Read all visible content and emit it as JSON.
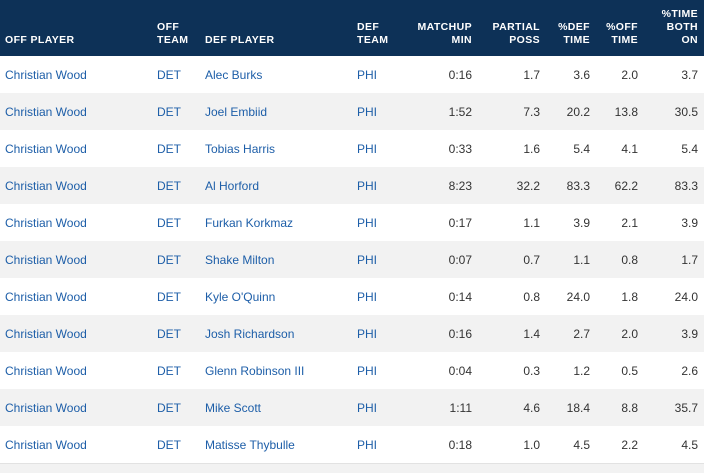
{
  "headers": {
    "off_player": "OFF PLAYER",
    "off_team": "OFF TEAM",
    "def_player": "DEF PLAYER",
    "def_team": "DEF TEAM",
    "matchup_min": "MATCHUP MIN",
    "partial_poss": "PARTIAL POSS",
    "pct_def_time": "%DEF TIME",
    "pct_off_time": "%OFF TIME",
    "pct_time_both_on": "%TIME BOTH ON"
  },
  "rows": [
    {
      "off_player": "Christian Wood",
      "off_team": "DET",
      "def_player": "Alec Burks",
      "def_team": "PHI",
      "matchup_min": "0:16",
      "partial_poss": "1.7",
      "pct_def_time": "3.6",
      "pct_off_time": "2.0",
      "pct_time_both_on": "3.7"
    },
    {
      "off_player": "Christian Wood",
      "off_team": "DET",
      "def_player": "Joel Embiid",
      "def_team": "PHI",
      "matchup_min": "1:52",
      "partial_poss": "7.3",
      "pct_def_time": "20.2",
      "pct_off_time": "13.8",
      "pct_time_both_on": "30.5"
    },
    {
      "off_player": "Christian Wood",
      "off_team": "DET",
      "def_player": "Tobias Harris",
      "def_team": "PHI",
      "matchup_min": "0:33",
      "partial_poss": "1.6",
      "pct_def_time": "5.4",
      "pct_off_time": "4.1",
      "pct_time_both_on": "5.4"
    },
    {
      "off_player": "Christian Wood",
      "off_team": "DET",
      "def_player": "Al Horford",
      "def_team": "PHI",
      "matchup_min": "8:23",
      "partial_poss": "32.2",
      "pct_def_time": "83.3",
      "pct_off_time": "62.2",
      "pct_time_both_on": "83.3"
    },
    {
      "off_player": "Christian Wood",
      "off_team": "DET",
      "def_player": "Furkan Korkmaz",
      "def_team": "PHI",
      "matchup_min": "0:17",
      "partial_poss": "1.1",
      "pct_def_time": "3.9",
      "pct_off_time": "2.1",
      "pct_time_both_on": "3.9"
    },
    {
      "off_player": "Christian Wood",
      "off_team": "DET",
      "def_player": "Shake Milton",
      "def_team": "PHI",
      "matchup_min": "0:07",
      "partial_poss": "0.7",
      "pct_def_time": "1.1",
      "pct_off_time": "0.8",
      "pct_time_both_on": "1.7"
    },
    {
      "off_player": "Christian Wood",
      "off_team": "DET",
      "def_player": "Kyle O'Quinn",
      "def_team": "PHI",
      "matchup_min": "0:14",
      "partial_poss": "0.8",
      "pct_def_time": "24.0",
      "pct_off_time": "1.8",
      "pct_time_both_on": "24.0"
    },
    {
      "off_player": "Christian Wood",
      "off_team": "DET",
      "def_player": "Josh Richardson",
      "def_team": "PHI",
      "matchup_min": "0:16",
      "partial_poss": "1.4",
      "pct_def_time": "2.7",
      "pct_off_time": "2.0",
      "pct_time_both_on": "3.9"
    },
    {
      "off_player": "Christian Wood",
      "off_team": "DET",
      "def_player": "Glenn Robinson III",
      "def_team": "PHI",
      "matchup_min": "0:04",
      "partial_poss": "0.3",
      "pct_def_time": "1.2",
      "pct_off_time": "0.5",
      "pct_time_both_on": "2.6"
    },
    {
      "off_player": "Christian Wood",
      "off_team": "DET",
      "def_player": "Mike Scott",
      "def_team": "PHI",
      "matchup_min": "1:11",
      "partial_poss": "4.6",
      "pct_def_time": "18.4",
      "pct_off_time": "8.8",
      "pct_time_both_on": "35.7"
    },
    {
      "off_player": "Christian Wood",
      "off_team": "DET",
      "def_player": "Matisse Thybulle",
      "def_team": "PHI",
      "matchup_min": "0:18",
      "partial_poss": "1.0",
      "pct_def_time": "4.5",
      "pct_off_time": "2.2",
      "pct_time_both_on": "4.5"
    }
  ],
  "colors": {
    "header_bg": "#0d3157",
    "header_text": "#ffffff",
    "link": "#1d5ea8",
    "row_alt": "#f2f2f2"
  }
}
